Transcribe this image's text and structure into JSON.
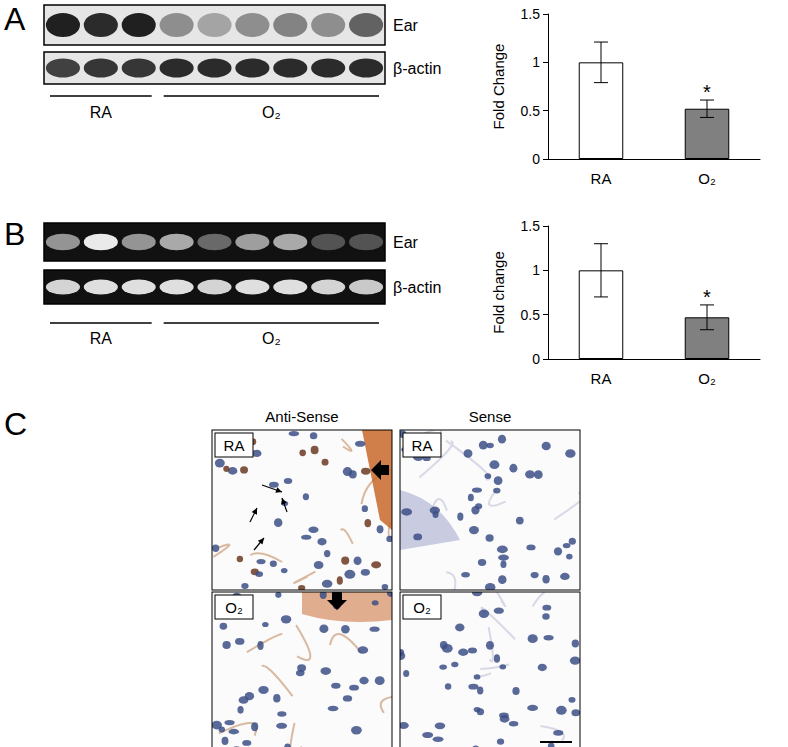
{
  "figure": {
    "panel_labels": [
      "A",
      "B",
      "C"
    ],
    "blots": [
      {
        "style": "western",
        "rows": [
          {
            "label": "Ear",
            "bands": [
              0.9,
              0.85,
              0.9,
              0.4,
              0.3,
              0.4,
              0.45,
              0.4,
              0.6
            ]
          },
          {
            "label": "β-actin",
            "bands": [
              0.75,
              0.8,
              0.8,
              0.85,
              0.85,
              0.85,
              0.85,
              0.85,
              0.85
            ]
          }
        ],
        "groups": [
          {
            "label": "RA",
            "lanes": 3
          },
          {
            "label": "O₂",
            "lanes": 6
          }
        ]
      },
      {
        "style": "gel",
        "rows": [
          {
            "label": "Ear",
            "bands": [
              0.5,
              0.9,
              0.5,
              0.6,
              0.3,
              0.55,
              0.6,
              0.2,
              0.2
            ]
          },
          {
            "label": "β-actin",
            "bands": [
              0.8,
              0.85,
              0.85,
              0.85,
              0.8,
              0.85,
              0.85,
              0.8,
              0.75
            ]
          }
        ],
        "groups": [
          {
            "label": "RA",
            "lanes": 3
          },
          {
            "label": "O₂",
            "lanes": 6
          }
        ]
      }
    ],
    "histology": {
      "columns": [
        "Anti-Sense",
        "Sense"
      ],
      "rows": [
        "RA",
        "O₂"
      ]
    }
  },
  "chart_data": [
    {
      "type": "bar",
      "categories": [
        "RA",
        "O₂"
      ],
      "values": [
        1,
        0.52
      ],
      "errors": [
        0.21,
        0.09
      ],
      "colors": [
        "#ffffff",
        "#808080"
      ],
      "ylabel": "Fold Change",
      "ylim": [
        0,
        1.5
      ],
      "yticks": [
        0,
        0.5,
        1,
        1.5
      ],
      "grid": false,
      "annotations": [
        {
          "category": "O₂",
          "text": "*"
        }
      ]
    },
    {
      "type": "bar",
      "categories": [
        "RA",
        "O₂"
      ],
      "values": [
        1,
        0.47
      ],
      "errors": [
        0.3,
        0.14
      ],
      "colors": [
        "#ffffff",
        "#808080"
      ],
      "ylabel": "Fold change",
      "ylim": [
        0,
        1.5
      ],
      "yticks": [
        0,
        0.5,
        1,
        1.5
      ],
      "grid": false,
      "annotations": [
        {
          "category": "O₂",
          "text": "*"
        }
      ]
    }
  ]
}
